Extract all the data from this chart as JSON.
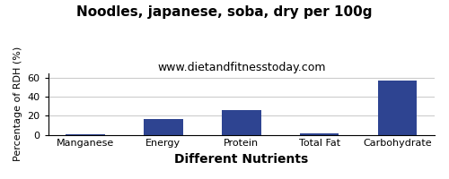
{
  "title": "Noodles, japanese, soba, dry per 100g",
  "subtitle": "www.dietandfitnesstoday.com",
  "xlabel": "Different Nutrients",
  "ylabel": "Percentage of RDH (%)",
  "categories": [
    "Manganese",
    "Energy",
    "Protein",
    "Total Fat",
    "Carbohydrate"
  ],
  "values": [
    0.3,
    17,
    26.5,
    1.2,
    57
  ],
  "bar_color": "#2e4491",
  "ylim": [
    0,
    65
  ],
  "yticks": [
    0,
    20,
    40,
    60
  ],
  "title_fontsize": 11,
  "subtitle_fontsize": 9,
  "xlabel_fontsize": 10,
  "ylabel_fontsize": 8,
  "tick_fontsize": 8,
  "background_color": "#ffffff",
  "grid_color": "#cccccc"
}
